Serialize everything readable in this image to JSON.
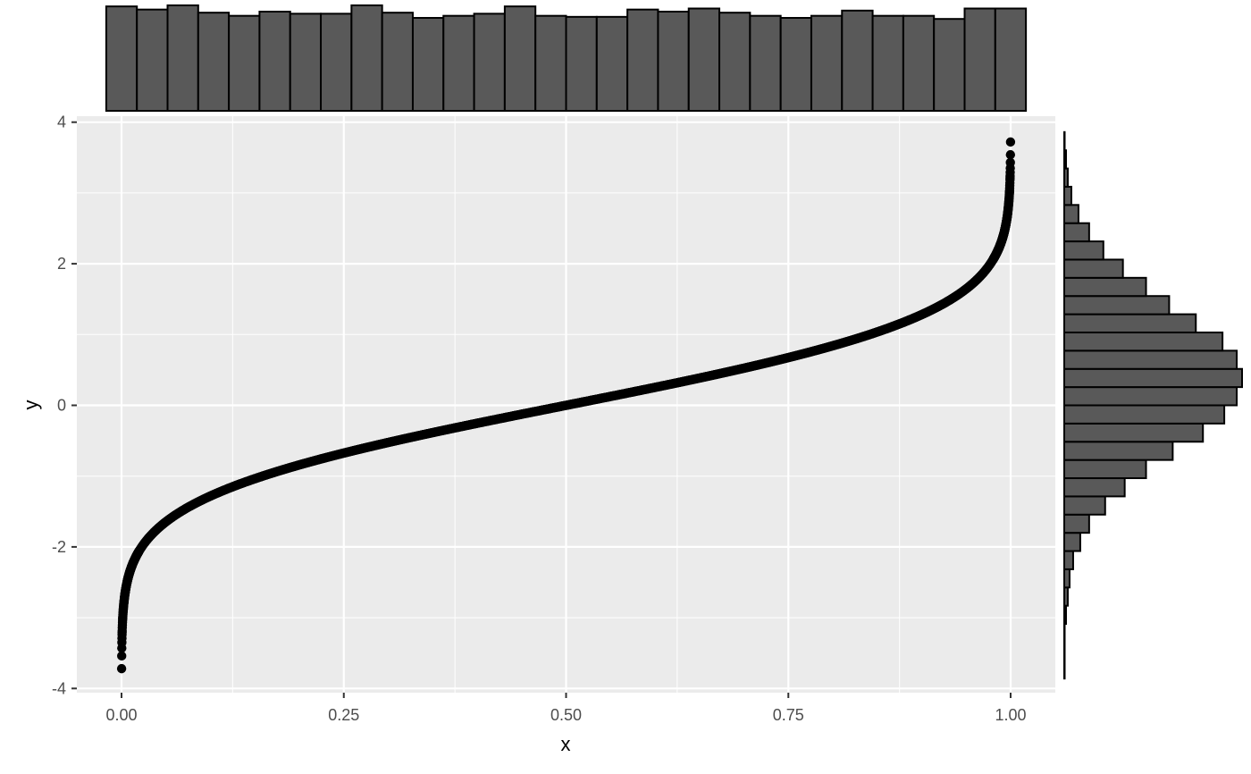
{
  "chart_data": [
    {
      "type": "scatter",
      "role": "main",
      "function": "y = qnorm(x)",
      "xlabel": "x",
      "ylabel": "y",
      "xlim": [
        -0.05,
        1.05
      ],
      "ylim": [
        -4.2,
        4.2
      ],
      "x_ticks": [
        0,
        0.25,
        0.5,
        0.75,
        1
      ],
      "x_tick_labels": [
        "0.00",
        "0.25",
        "0.50",
        "0.75",
        "1.00"
      ],
      "y_ticks": [
        -4,
        -2,
        0,
        2,
        4
      ],
      "y_tick_labels": [
        "-4",
        "-2",
        "0",
        "2",
        "4"
      ],
      "extreme_points": [
        {
          "x": 0.0001,
          "y": -3.72
        },
        {
          "x": 0.0002,
          "y": -3.54
        },
        {
          "x": 0.0003,
          "y": -3.43
        },
        {
          "x": 0.0004,
          "y": -3.35
        },
        {
          "x": 0.0005,
          "y": -3.29
        },
        {
          "x": 0.9995,
          "y": 3.29
        },
        {
          "x": 0.9996,
          "y": 3.35
        },
        {
          "x": 0.9997,
          "y": 3.43
        },
        {
          "x": 0.9998,
          "y": 3.54
        },
        {
          "x": 0.9999,
          "y": 3.72
        }
      ],
      "point_color": "#000000",
      "panel_background": "#ebebeb",
      "grid": true
    },
    {
      "type": "bar",
      "role": "top-marginal-histogram-of-x",
      "bins": 30,
      "bin_range": [
        -0.0172,
        1.0172
      ],
      "counts": [
        1.0,
        0.97,
        1.01,
        0.94,
        0.91,
        0.95,
        0.93,
        0.93,
        1.01,
        0.94,
        0.89,
        0.91,
        0.93,
        1.0,
        0.91,
        0.9,
        0.9,
        0.97,
        0.95,
        0.98,
        0.94,
        0.91,
        0.89,
        0.91,
        0.96,
        0.91,
        0.91,
        0.88,
        0.98,
        0.98
      ],
      "bar_fill": "#595959",
      "bar_stroke": "#000000"
    },
    {
      "type": "bar",
      "role": "right-marginal-histogram-of-y",
      "orientation": "horizontal",
      "bins": 30,
      "bin_range": [
        -3.86,
        3.86
      ],
      "counts": [
        0.0,
        0.0,
        0.0,
        0.01,
        0.02,
        0.03,
        0.05,
        0.09,
        0.14,
        0.23,
        0.34,
        0.46,
        0.61,
        0.78,
        0.9,
        0.97,
        1.0,
        0.97,
        0.89,
        0.74,
        0.59,
        0.46,
        0.33,
        0.22,
        0.14,
        0.08,
        0.04,
        0.02,
        0.01,
        0.0
      ],
      "bar_fill": "#595959",
      "bar_stroke": "#000000"
    }
  ]
}
